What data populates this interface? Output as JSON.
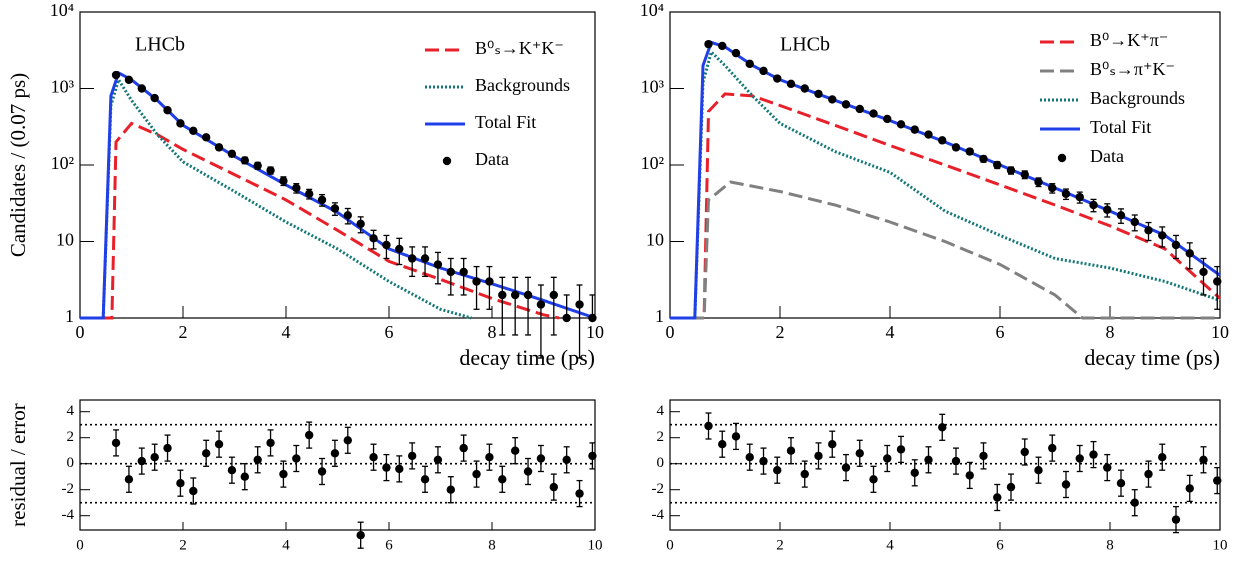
{
  "chart_data": [
    {
      "type": "line",
      "log_y": true,
      "annotation": "LHCb",
      "xlabel": "decay time (ps)",
      "ylabel": "Candidates / (0.07 ps)",
      "xlim": [
        0,
        10
      ],
      "xticks": [
        0,
        2,
        4,
        6,
        8,
        10
      ],
      "ylim": [
        1,
        10000
      ],
      "yticks": [
        1,
        10,
        {
          "value": 100,
          "label": "10²"
        },
        {
          "value": 1000,
          "label": "10³"
        },
        {
          "value": 10000,
          "label": "10⁴"
        }
      ],
      "series": [
        {
          "name": "B⁰ₛ→K⁺K⁻",
          "color": "#e8202a",
          "style": "dashed",
          "x": [
            0,
            0.6,
            0.62,
            0.7,
            1,
            1.5,
            2,
            3,
            4,
            5,
            6,
            7,
            8,
            9,
            9.3
          ],
          "values": [
            1,
            1,
            1,
            200,
            350,
            250,
            160,
            75,
            35,
            14,
            5.5,
            3.2,
            1.8,
            1.1,
            1
          ]
        },
        {
          "name": "Backgrounds",
          "color": "#137777",
          "style": "dotted",
          "x": [
            0.45,
            0.6,
            0.75,
            1,
            1.5,
            2,
            3,
            4,
            5,
            6,
            7,
            7.6
          ],
          "values": [
            1,
            600,
            1300,
            700,
            250,
            110,
            45,
            18,
            8,
            3,
            1.3,
            1
          ]
        },
        {
          "name": "Total Fit",
          "color": "#1f3fe8",
          "style": "solid",
          "x": [
            0,
            0.45,
            0.6,
            0.75,
            1,
            1.5,
            2,
            3,
            4,
            5,
            6,
            7,
            8,
            9,
            10
          ],
          "values": [
            1,
            1,
            800,
            1600,
            1300,
            700,
            330,
            130,
            55,
            24,
            8,
            4.5,
            2.8,
            1.7,
            1
          ]
        },
        {
          "name": "Data",
          "color": "#000000",
          "style": "points",
          "x": [
            0.7,
            0.95,
            1.2,
            1.45,
            1.7,
            1.95,
            2.2,
            2.45,
            2.7,
            2.95,
            3.2,
            3.45,
            3.7,
            3.95,
            4.2,
            4.45,
            4.7,
            4.95,
            5.2,
            5.45,
            5.7,
            5.95,
            6.2,
            6.45,
            6.7,
            6.95,
            7.2,
            7.45,
            7.7,
            7.95,
            8.2,
            8.45,
            8.7,
            8.95,
            9.2,
            9.45,
            9.7,
            9.95
          ],
          "values": [
            1500,
            1300,
            1000,
            750,
            520,
            350,
            280,
            230,
            170,
            140,
            115,
            98,
            85,
            62,
            50,
            42,
            35,
            27,
            22,
            17,
            11,
            9,
            8,
            6,
            6,
            5,
            4,
            4,
            3,
            3,
            2,
            2,
            2,
            1.5,
            2,
            1,
            1.5,
            1
          ],
          "errors": [
            39,
            36,
            32,
            27,
            23,
            19,
            17,
            15,
            13,
            12,
            11,
            10,
            9,
            8,
            7,
            6,
            6,
            5,
            5,
            4,
            3,
            3,
            3,
            2.5,
            2.5,
            2.2,
            2,
            2,
            1.7,
            1.7,
            1.4,
            1.4,
            1.4,
            1.2,
            1.4,
            1,
            1.2,
            1
          ]
        }
      ]
    },
    {
      "type": "line",
      "log_y": true,
      "annotation": "LHCb",
      "xlabel": "decay time (ps)",
      "xlim": [
        0,
        10
      ],
      "xticks": [
        0,
        2,
        4,
        6,
        8,
        10
      ],
      "ylim": [
        1,
        10000
      ],
      "yticks": [
        1,
        10,
        {
          "value": 100,
          "label": "10²"
        },
        {
          "value": 1000,
          "label": "10³"
        },
        {
          "value": 10000,
          "label": "10⁴"
        }
      ],
      "series": [
        {
          "name": "B⁰→K⁺π⁻",
          "color": "#e8202a",
          "style": "dashed",
          "x": [
            0,
            0.6,
            0.62,
            0.7,
            1,
            1.5,
            2,
            3,
            4,
            5,
            6,
            7,
            8,
            9,
            10
          ],
          "values": [
            1,
            1,
            1,
            500,
            850,
            800,
            600,
            330,
            180,
            100,
            55,
            30,
            16,
            8,
            1.8
          ]
        },
        {
          "name": "B⁰ₛ→π⁺K⁻",
          "color": "#808080",
          "style": "dashed",
          "x": [
            0,
            0.6,
            0.62,
            0.7,
            1.1,
            2,
            3,
            4,
            5,
            6,
            7,
            7.5,
            10
          ],
          "values": [
            1,
            1,
            1,
            35,
            60,
            45,
            30,
            18,
            10,
            5,
            2,
            1,
            1
          ]
        },
        {
          "name": "Backgrounds",
          "color": "#137777",
          "style": "dotted",
          "x": [
            0.45,
            0.6,
            0.75,
            1,
            1.5,
            2,
            3,
            4,
            5,
            6,
            7,
            8,
            9,
            10
          ],
          "values": [
            1,
            1200,
            3000,
            2000,
            800,
            350,
            150,
            80,
            25,
            12,
            6,
            4.5,
            3,
            1.7
          ]
        },
        {
          "name": "Total Fit",
          "color": "#1f3fe8",
          "style": "solid",
          "x": [
            0,
            0.45,
            0.6,
            0.75,
            1,
            1.5,
            2,
            3,
            4,
            5,
            6,
            7,
            8,
            9,
            10
          ],
          "values": [
            1,
            1,
            2000,
            4000,
            3500,
            2000,
            1300,
            700,
            380,
            200,
            100,
            50,
            25,
            12,
            3.6
          ]
        },
        {
          "name": "Data",
          "color": "#000000",
          "style": "points",
          "x": [
            0.7,
            0.95,
            1.2,
            1.45,
            1.7,
            1.95,
            2.2,
            2.45,
            2.7,
            2.95,
            3.2,
            3.45,
            3.7,
            3.95,
            4.2,
            4.45,
            4.7,
            4.95,
            5.2,
            5.45,
            5.7,
            5.95,
            6.2,
            6.45,
            6.7,
            6.95,
            7.2,
            7.45,
            7.7,
            7.95,
            8.2,
            8.45,
            8.7,
            8.95,
            9.2,
            9.45,
            9.7,
            9.95
          ],
          "values": [
            3800,
            3600,
            2900,
            2100,
            1700,
            1350,
            1150,
            1000,
            850,
            720,
            620,
            540,
            470,
            400,
            340,
            290,
            250,
            210,
            170,
            150,
            120,
            100,
            85,
            75,
            60,
            50,
            42,
            38,
            30,
            26,
            22,
            18,
            14,
            12,
            9,
            7,
            4,
            3
          ],
          "errors": [
            62,
            60,
            54,
            46,
            41,
            37,
            34,
            32,
            29,
            27,
            25,
            23,
            22,
            20,
            18,
            17,
            16,
            14,
            13,
            12,
            11,
            10,
            9,
            8.7,
            7.7,
            7,
            6.5,
            6.2,
            5.5,
            5.1,
            4.7,
            4.2,
            3.7,
            3.5,
            3,
            2.6,
            2,
            1.7
          ]
        }
      ]
    },
    {
      "type": "scatter",
      "ylabel": "residual / error",
      "xlim": [
        0,
        10
      ],
      "xticks": [
        0,
        2,
        4,
        6,
        8,
        10
      ],
      "ylim": [
        -5.1,
        4.9
      ],
      "yticks": [
        -4,
        -2,
        0,
        2,
        4
      ],
      "reference_lines": [
        -3,
        0,
        3
      ],
      "x": [
        0.7,
        0.95,
        1.2,
        1.45,
        1.7,
        1.95,
        2.2,
        2.45,
        2.7,
        2.95,
        3.2,
        3.45,
        3.7,
        3.95,
        4.2,
        4.45,
        4.7,
        4.95,
        5.2,
        5.45,
        5.7,
        5.95,
        6.2,
        6.45,
        6.7,
        6.95,
        7.2,
        7.45,
        7.7,
        7.95,
        8.2,
        8.45,
        8.7,
        8.95,
        9.2,
        9.45,
        9.7,
        9.95
      ],
      "values": [
        1.6,
        -1.2,
        0.2,
        0.5,
        1.2,
        -1.5,
        -2.1,
        0.8,
        1.5,
        -0.5,
        -1,
        0.3,
        1.6,
        -0.8,
        0.4,
        2.2,
        -0.6,
        0.8,
        1.8,
        -5.5,
        0.5,
        -0.3,
        -0.4,
        0.6,
        -1.2,
        0.3,
        -2,
        1.2,
        -0.8,
        0.5,
        -1.2,
        1,
        -0.6,
        0.4,
        -1.8,
        0.3,
        -2.3,
        0.6
      ],
      "errors": [
        1,
        1,
        1,
        1,
        1,
        1,
        1,
        1,
        1,
        1,
        1,
        1,
        1,
        1,
        1,
        1,
        1,
        1,
        1,
        1,
        1,
        1,
        1,
        1,
        1,
        1,
        1,
        1,
        1,
        1,
        1,
        1,
        1,
        1,
        1,
        1,
        1,
        1
      ]
    },
    {
      "type": "scatter",
      "xlim": [
        0,
        10
      ],
      "xticks": [
        0,
        2,
        4,
        6,
        8,
        10
      ],
      "ylim": [
        -5.1,
        4.9
      ],
      "yticks": [
        -4,
        -2,
        0,
        2,
        4
      ],
      "reference_lines": [
        -3,
        0,
        3
      ],
      "x": [
        0.7,
        0.95,
        1.2,
        1.45,
        1.7,
        1.95,
        2.2,
        2.45,
        2.7,
        2.95,
        3.2,
        3.45,
        3.7,
        3.95,
        4.2,
        4.45,
        4.7,
        4.95,
        5.2,
        5.45,
        5.7,
        5.95,
        6.2,
        6.45,
        6.7,
        6.95,
        7.2,
        7.45,
        7.7,
        7.95,
        8.2,
        8.45,
        8.7,
        8.95,
        9.2,
        9.45,
        9.7,
        9.95
      ],
      "values": [
        2.9,
        1.5,
        2.1,
        0.5,
        0.2,
        -0.5,
        1,
        -0.8,
        0.6,
        1.5,
        -0.3,
        0.8,
        -1.2,
        0.4,
        1.1,
        -0.7,
        0.3,
        2.8,
        0.2,
        -0.9,
        0.6,
        -2.6,
        -1.8,
        0.9,
        -0.5,
        1.2,
        -1.6,
        0.4,
        0.7,
        -0.3,
        -1.5,
        -3,
        -0.8,
        0.5,
        -4.3,
        -1.9,
        0.3,
        -1.3
      ],
      "errors": [
        1,
        1,
        1,
        1,
        1,
        1,
        1,
        1,
        1,
        1,
        1,
        1,
        1,
        1,
        1,
        1,
        1,
        1,
        1,
        1,
        1,
        1,
        1,
        1,
        1,
        1,
        1,
        1,
        1,
        1,
        1,
        1,
        1,
        1,
        1,
        1,
        1,
        1
      ]
    }
  ]
}
